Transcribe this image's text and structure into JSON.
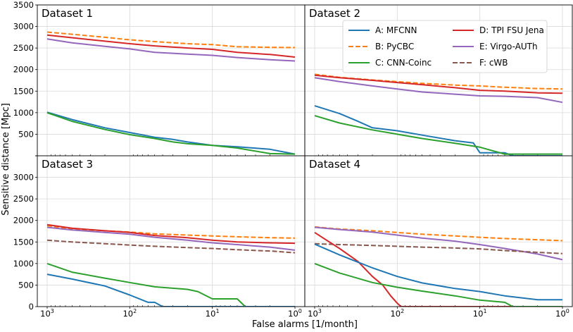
{
  "figure": {
    "ylabel": "Sensitive distance [Mpc]",
    "xlabel": "False alarms [1/month]"
  },
  "legend": {
    "placement": "top-right of upper-right panel",
    "entries": [
      {
        "key": "A",
        "label": "A: MFCNN",
        "color": "#1f77b4",
        "dash": "solid"
      },
      {
        "key": "B",
        "label": "B: PyCBC",
        "color": "#ff7f0e",
        "dash": "dashed"
      },
      {
        "key": "C",
        "label": "C: CNN-Coinc",
        "color": "#2ca02c",
        "dash": "solid"
      },
      {
        "key": "D",
        "label": "D: TPI FSU Jena",
        "color": "#d62728",
        "dash": "solid"
      },
      {
        "key": "E",
        "label": "E: Virgo-AUTh",
        "color": "#9467bd",
        "dash": "solid"
      },
      {
        "key": "F",
        "label": "F: cWB",
        "color": "#8c564b",
        "dash": "dashed"
      }
    ]
  },
  "chart_data": [
    {
      "type": "line",
      "title": "Dataset 1",
      "xscale": "log",
      "xlim": [
        1000,
        1
      ],
      "xinverted": true,
      "ylim": [
        0,
        3500
      ],
      "grid": true,
      "yticks": [
        "",
        "500",
        "1000",
        "1500",
        "2000",
        "2500",
        "3000",
        "3500"
      ],
      "xticks": [],
      "series": [
        {
          "key": "B",
          "x": [
            1000,
            500,
            200,
            100,
            50,
            20,
            10,
            5,
            2,
            1
          ],
          "values": [
            2870,
            2820,
            2750,
            2690,
            2650,
            2600,
            2580,
            2530,
            2515,
            2510
          ]
        },
        {
          "key": "D",
          "x": [
            1000,
            500,
            200,
            100,
            50,
            20,
            10,
            5,
            2,
            1
          ],
          "values": [
            2800,
            2740,
            2660,
            2600,
            2550,
            2500,
            2470,
            2400,
            2350,
            2290
          ]
        },
        {
          "key": "E",
          "x": [
            1000,
            500,
            200,
            100,
            50,
            20,
            10,
            5,
            2,
            1
          ],
          "values": [
            2710,
            2620,
            2540,
            2480,
            2400,
            2360,
            2330,
            2280,
            2230,
            2200
          ]
        },
        {
          "key": "A",
          "x": [
            1000,
            500,
            200,
            100,
            50,
            30,
            20,
            10,
            5,
            2,
            1
          ],
          "values": [
            1010,
            840,
            650,
            540,
            430,
            380,
            320,
            240,
            210,
            150,
            40
          ]
        },
        {
          "key": "C",
          "x": [
            1000,
            500,
            200,
            100,
            50,
            30,
            20,
            10,
            5,
            2,
            1
          ],
          "values": [
            1000,
            800,
            610,
            490,
            400,
            320,
            280,
            240,
            180,
            50,
            40
          ]
        }
      ]
    },
    {
      "type": "line",
      "title": "Dataset 2",
      "xscale": "log",
      "xlim": [
        1000,
        1
      ],
      "xinverted": true,
      "ylim": [
        0,
        3500
      ],
      "grid": true,
      "yticks": [],
      "xticks": [],
      "series": [
        {
          "key": "B",
          "x": [
            1000,
            500,
            200,
            100,
            50,
            20,
            10,
            5,
            2,
            1
          ],
          "values": [
            1890,
            1820,
            1760,
            1720,
            1680,
            1640,
            1620,
            1590,
            1560,
            1550
          ]
        },
        {
          "key": "D",
          "x": [
            1000,
            500,
            200,
            100,
            50,
            20,
            10,
            5,
            2,
            1
          ],
          "values": [
            1870,
            1810,
            1750,
            1700,
            1650,
            1580,
            1520,
            1500,
            1460,
            1450
          ]
        },
        {
          "key": "E",
          "x": [
            1000,
            500,
            200,
            100,
            50,
            20,
            10,
            5,
            2,
            1
          ],
          "values": [
            1810,
            1720,
            1620,
            1550,
            1480,
            1430,
            1390,
            1380,
            1350,
            1240
          ]
        },
        {
          "key": "A",
          "x": [
            1000,
            500,
            300,
            200,
            100,
            50,
            20,
            12,
            10,
            5,
            4,
            3,
            1
          ],
          "values": [
            1160,
            980,
            800,
            650,
            580,
            480,
            350,
            300,
            70,
            70,
            0,
            0,
            0
          ]
        },
        {
          "key": "C",
          "x": [
            1000,
            500,
            200,
            100,
            50,
            20,
            10,
            5,
            2,
            1
          ],
          "values": [
            930,
            760,
            600,
            500,
            400,
            290,
            200,
            40,
            40,
            40
          ]
        }
      ]
    },
    {
      "type": "line",
      "title": "Dataset 3",
      "xscale": "log",
      "xlim": [
        1000,
        1
      ],
      "xinverted": true,
      "ylim": [
        0,
        3500
      ],
      "grid": true,
      "yticks": [
        "0",
        "500",
        "1000",
        "1500",
        "2000",
        "2500",
        "3000",
        ""
      ],
      "xticks": [
        "1000",
        "100",
        "10",
        "1"
      ],
      "series": [
        {
          "key": "B",
          "x": [
            1000,
            500,
            200,
            100,
            50,
            20,
            10,
            5,
            2,
            1
          ],
          "values": [
            1880,
            1800,
            1760,
            1730,
            1690,
            1660,
            1640,
            1620,
            1600,
            1590
          ]
        },
        {
          "key": "D",
          "x": [
            1000,
            500,
            200,
            100,
            50,
            20,
            10,
            5,
            2,
            1
          ],
          "values": [
            1900,
            1820,
            1760,
            1720,
            1650,
            1600,
            1540,
            1500,
            1480,
            1470
          ]
        },
        {
          "key": "E",
          "x": [
            1000,
            500,
            200,
            100,
            50,
            20,
            10,
            5,
            2,
            1
          ],
          "values": [
            1840,
            1780,
            1720,
            1680,
            1610,
            1540,
            1480,
            1440,
            1380,
            1310
          ]
        },
        {
          "key": "F",
          "x": [
            1000,
            500,
            200,
            100,
            50,
            20,
            10,
            5,
            2,
            1
          ],
          "values": [
            1540,
            1500,
            1460,
            1430,
            1400,
            1370,
            1350,
            1320,
            1290,
            1250
          ]
        },
        {
          "key": "C",
          "x": [
            1000,
            500,
            200,
            100,
            50,
            20,
            15,
            10,
            5,
            4,
            3,
            1
          ],
          "values": [
            1000,
            800,
            660,
            560,
            460,
            400,
            350,
            180,
            180,
            0,
            0,
            0
          ]
        },
        {
          "key": "A",
          "x": [
            1000,
            500,
            200,
            100,
            60,
            50,
            40,
            20,
            10,
            1
          ],
          "values": [
            750,
            640,
            480,
            270,
            100,
            100,
            0,
            0,
            0,
            0
          ]
        }
      ]
    },
    {
      "type": "line",
      "title": "Dataset 4",
      "xscale": "log",
      "xlim": [
        1000,
        1
      ],
      "xinverted": true,
      "ylim": [
        0,
        3500
      ],
      "grid": true,
      "yticks": [],
      "xticks": [
        "1000",
        "100",
        "10",
        "1"
      ],
      "series": [
        {
          "key": "B",
          "x": [
            1000,
            500,
            200,
            100,
            50,
            20,
            10,
            5,
            2,
            1
          ],
          "values": [
            1850,
            1800,
            1760,
            1720,
            1680,
            1640,
            1610,
            1580,
            1550,
            1530
          ]
        },
        {
          "key": "E",
          "x": [
            1000,
            500,
            200,
            100,
            50,
            20,
            10,
            5,
            2,
            1
          ],
          "values": [
            1840,
            1790,
            1730,
            1660,
            1590,
            1520,
            1440,
            1350,
            1220,
            1090
          ]
        },
        {
          "key": "F",
          "x": [
            1000,
            500,
            200,
            100,
            50,
            20,
            10,
            5,
            2,
            1
          ],
          "values": [
            1460,
            1440,
            1420,
            1400,
            1380,
            1360,
            1340,
            1300,
            1260,
            1230
          ]
        },
        {
          "key": "D",
          "x": [
            1000,
            800,
            500,
            300,
            200,
            150,
            120,
            100,
            90,
            80,
            1
          ],
          "values": [
            1720,
            1600,
            1350,
            1050,
            700,
            500,
            250,
            80,
            0,
            0,
            0
          ]
        },
        {
          "key": "A",
          "x": [
            1000,
            500,
            200,
            100,
            50,
            20,
            10,
            5,
            2,
            1
          ],
          "values": [
            1450,
            1200,
            900,
            700,
            550,
            420,
            350,
            250,
            160,
            160
          ]
        },
        {
          "key": "C",
          "x": [
            1000,
            500,
            200,
            100,
            50,
            20,
            10,
            5,
            4,
            3,
            1
          ],
          "values": [
            1000,
            780,
            560,
            450,
            360,
            250,
            150,
            100,
            0,
            0,
            0
          ]
        }
      ]
    }
  ]
}
